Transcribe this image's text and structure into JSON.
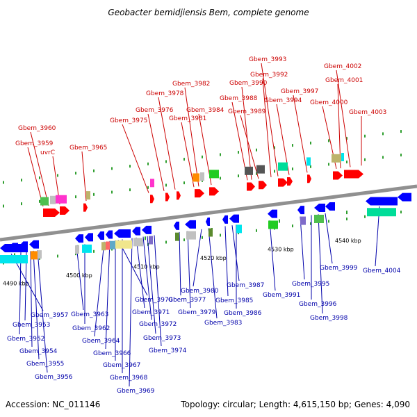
{
  "title": "Geobacter bemidjiensis Bem, complete genome",
  "footer": {
    "accession": "Accession: NC_011146",
    "summary": "Topology: circular; Length: 4,615,150 bp; Genes: 4,090"
  },
  "colors": {
    "forward_strand": "#ff0000",
    "reverse_strand": "#0000ff",
    "forward_label": "#cc0000",
    "reverse_label": "#0000aa",
    "backbone": "#909090",
    "tick": "#2e9e2e"
  },
  "ticks": [
    "4490 kbp",
    "4500 kbp",
    "4510 kbp",
    "4520 kbp",
    "4530 kbp",
    "4540 kbp"
  ],
  "top_genes": [
    "Gbem_3959",
    "Gbem_3960",
    "uvrC",
    "Gbem_3965",
    "Gbem_3975",
    "Gbem_3976",
    "Gbem_3978",
    "Gbem_3981",
    "Gbem_3982",
    "Gbem_3984",
    "Gbem_3988",
    "Gbem_3989",
    "Gbem_3990",
    "Gbem_3992",
    "Gbem_3993",
    "Gbem_3994",
    "Gbem_3997",
    "Gbem_4000",
    "Gbem_4001",
    "Gbem_4002",
    "Gbem_4003"
  ],
  "bottom_genes": [
    "Gbem_3953",
    "Gbem_3952",
    "Gbem_3954",
    "Gbem_3955",
    "Gbem_3956",
    "Gbem_3957",
    "Gbem_3962",
    "Gbem_3963",
    "Gbem_3964",
    "Gbem_3966",
    "Gbem_3967",
    "Gbem_3968",
    "Gbem_3969",
    "Gbem_3970",
    "Gbem_3971",
    "Gbem_3972",
    "Gbem_3973",
    "Gbem_3974",
    "Gbem_3977",
    "Gbem_3979",
    "Gbem_3980",
    "Gbem_3983",
    "Gbem_3985",
    "Gbem_3986",
    "Gbem_3987",
    "Gbem_3991",
    "Gbem_3995",
    "Gbem_3996",
    "Gbem_3998",
    "Gbem_3999",
    "Gbem_4004"
  ]
}
